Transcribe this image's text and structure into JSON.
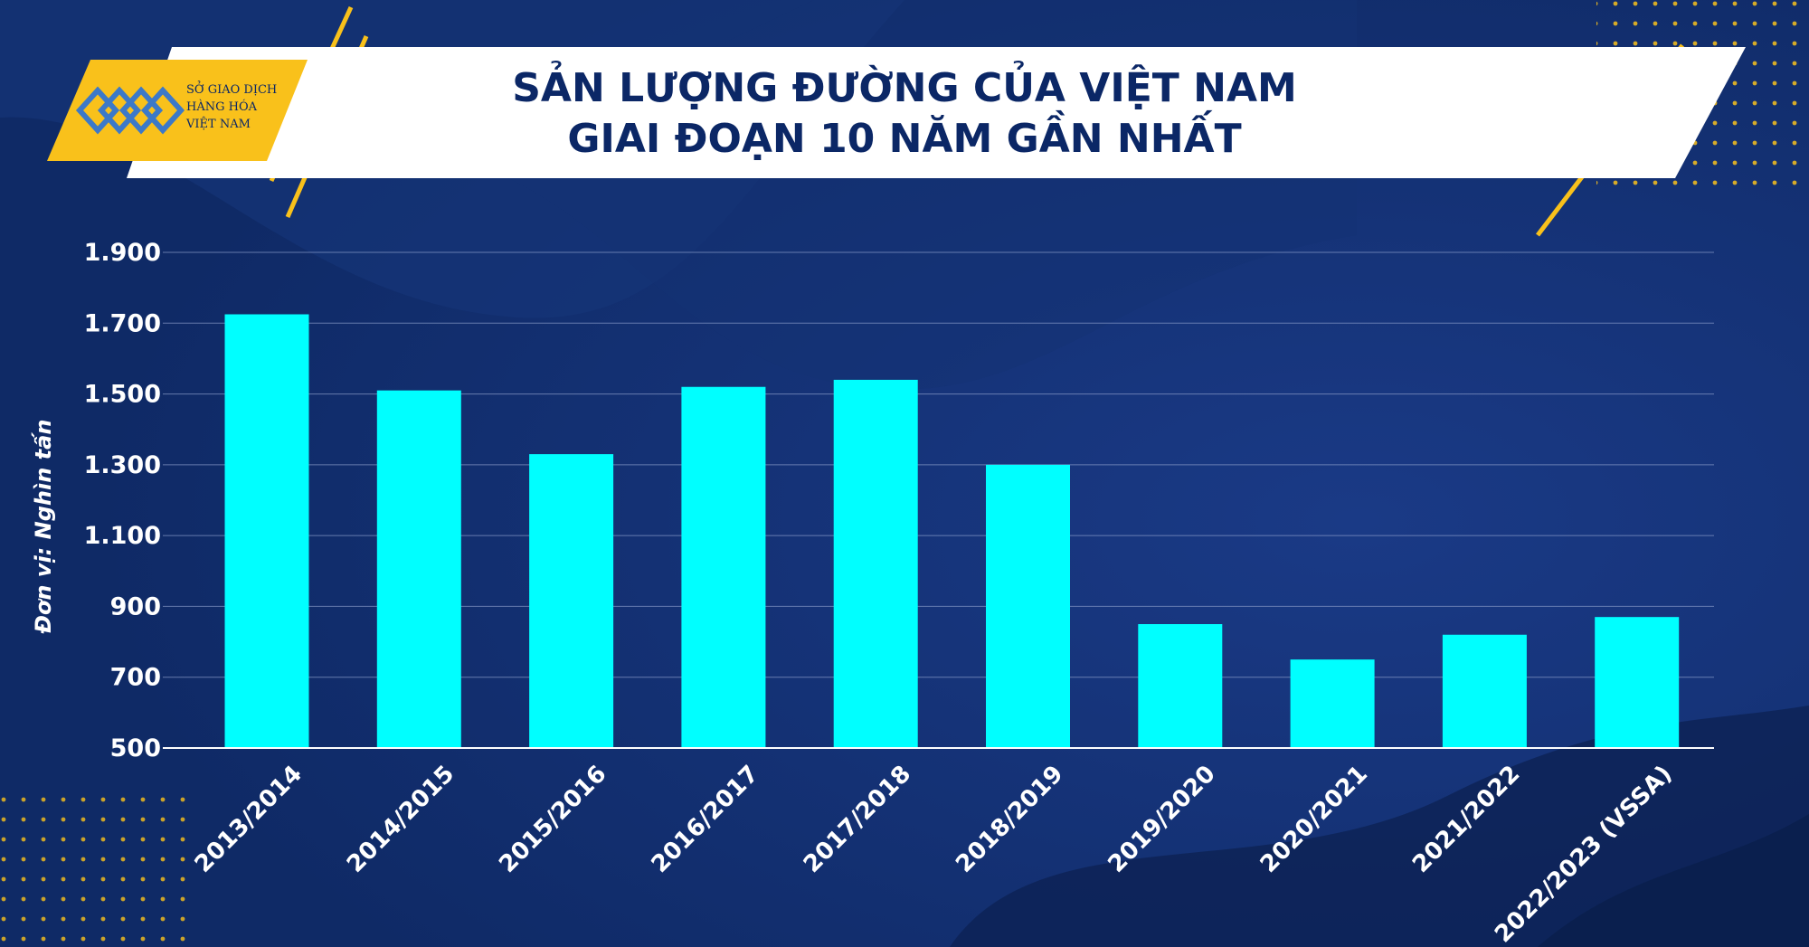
{
  "logo": {
    "line1": "SỞ GIAO DỊCH",
    "line2": "HÀNG HÓA",
    "line3": "VIỆT NAM",
    "color": "#f9c11b"
  },
  "header": {
    "title_line1": "SẢN LƯỢNG ĐƯỜNG CỦA VIỆT NAM",
    "title_line2": "GIAI ĐOẠN 10 NĂM GẦN NHẤT"
  },
  "colors": {
    "background": "#0f2a66",
    "bar": "#00ffff",
    "accent": "#f9c11b",
    "title_text": "#0b2766"
  },
  "chart_data": {
    "type": "bar",
    "title": "SẢN LƯỢNG ĐƯỜNG CỦA VIỆT NAM GIAI ĐOẠN 10 NĂM GẦN NHẤT",
    "xlabel": "",
    "ylabel": "Đơn vị: Nghìn tấn",
    "categories": [
      "2013/2014",
      "2014/2015",
      "2015/2016",
      "2016/2017",
      "2017/2018",
      "2018/2019",
      "2019/2020",
      "2020/2021",
      "2021/2022",
      "2022/2023 (VSSA)"
    ],
    "values": [
      1725,
      1510,
      1330,
      1520,
      1540,
      1300,
      850,
      750,
      820,
      870
    ],
    "ylim": [
      500,
      1900
    ],
    "yticks": [
      500,
      700,
      900,
      1100,
      1300,
      1500,
      1700,
      1900
    ],
    "ytick_labels": [
      "500",
      "700",
      "900",
      "1.100",
      "1.300",
      "1.500",
      "1.700",
      "1.900"
    ],
    "grid": true,
    "legend": "none"
  }
}
